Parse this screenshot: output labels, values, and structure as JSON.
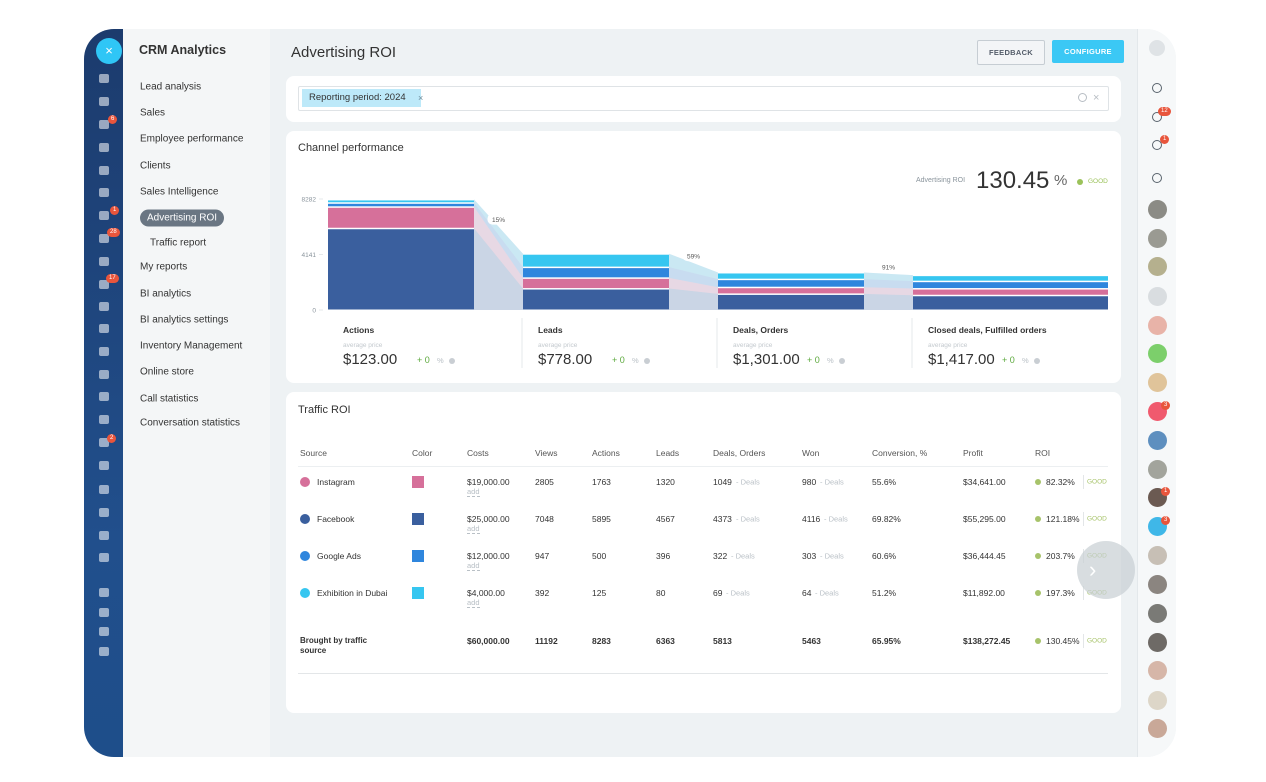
{
  "sidebar": {
    "title": "CRM Analytics",
    "items": [
      "Lead analysis",
      "Sales",
      "Employee performance",
      "Clients",
      "Sales Intelligence",
      "Advertising ROI",
      "Traffic report",
      "My reports",
      "BI analytics",
      "BI analytics settings",
      "Inventory Management",
      "Online store",
      "Call statistics",
      "Conversation statistics"
    ]
  },
  "left_rail": {
    "badges": [
      "6",
      "1",
      "28",
      "17",
      "2"
    ]
  },
  "right_rail": {
    "badges": [
      "12",
      "1",
      "3",
      "1",
      "3"
    ]
  },
  "header": {
    "title": "Advertising ROI",
    "buttons": [
      "FEEDBACK",
      "CONFIGURE"
    ]
  },
  "filter": {
    "tag": "Reporting period: 2024"
  },
  "chart_data": {
    "type": "funnel",
    "title": "Channel performance",
    "kpi": {
      "label": "Advertising ROI",
      "value": 130.45,
      "unit": "%",
      "status": "GOOD"
    },
    "categories": [
      "Actions",
      "Leads",
      "Deals, Orders",
      "Closed deals, Fulfilled orders"
    ],
    "series": [
      {
        "name": "Facebook",
        "color": "#3a5f9e",
        "values": [
          6100,
          1600,
          1200,
          1100
        ]
      },
      {
        "name": "Instagram",
        "color": "#d6709a",
        "values": [
          1600,
          800,
          500,
          500
        ]
      },
      {
        "name": "Google Ads",
        "color": "#2f86dd",
        "values": [
          300,
          800,
          600,
          550
        ]
      },
      {
        "name": "Exhibition in Dubai",
        "color": "#36c6f0",
        "values": [
          250,
          1000,
          500,
          450
        ]
      }
    ],
    "annotations": [
      "15%",
      "59%",
      "91%"
    ],
    "ylim": [
      0,
      8282
    ],
    "yticks": [
      0,
      4141,
      8282
    ],
    "stage_stats": [
      {
        "caption": "average price",
        "value": "$123.00",
        "change": "+ 0",
        "unit": "%"
      },
      {
        "caption": "average price",
        "value": "$778.00",
        "change": "+ 0",
        "unit": "%"
      },
      {
        "caption": "average price",
        "value": "$1,301.00",
        "change": "+ 0",
        "unit": "%"
      },
      {
        "caption": "average price",
        "value": "$1,417.00",
        "change": "+ 0",
        "unit": "%"
      }
    ]
  },
  "table": {
    "title": "Traffic ROI",
    "columns": [
      "Source",
      "Color",
      "Costs",
      "Views",
      "Actions",
      "Leads",
      "Deals, Orders",
      "Won",
      "Conversion, %",
      "Profit",
      "ROI"
    ],
    "rows": [
      {
        "source": "Instagram",
        "color": "#d6709a",
        "costs": "$19,000.00",
        "costs_link": "add",
        "views": 2805,
        "actions": 1763,
        "leads": 1320,
        "deals": 1049,
        "deals_unit": "- Deals",
        "won": 980,
        "won_unit": "- Deals",
        "conversion": "55.6%",
        "profit": "$34,641.00",
        "roi": "82.32%",
        "roi_status": "GOOD"
      },
      {
        "source": "Facebook",
        "color": "#3a5f9e",
        "costs": "$25,000.00",
        "costs_link": "add",
        "views": 7048,
        "actions": 5895,
        "leads": 4567,
        "deals": 4373,
        "deals_unit": "- Deals",
        "won": 4116,
        "won_unit": "- Deals",
        "conversion": "69.82%",
        "profit": "$55,295.00",
        "roi": "121.18%",
        "roi_status": "GOOD"
      },
      {
        "source": "Google Ads",
        "color": "#2f86dd",
        "costs": "$12,000.00",
        "costs_link": "add",
        "views": 947,
        "actions": 500,
        "leads": 396,
        "deals": 322,
        "deals_unit": "- Deals",
        "won": 303,
        "won_unit": "- Deals",
        "conversion": "60.6%",
        "profit": "$36,444.45",
        "roi": "203.7%",
        "roi_status": "GOOD"
      },
      {
        "source": "Exhibition in Dubai",
        "color": "#36c6f0",
        "costs": "$4,000.00",
        "costs_link": "add",
        "views": 392,
        "actions": 125,
        "leads": 80,
        "deals": 69,
        "deals_unit": "- Deals",
        "won": 64,
        "won_unit": "- Deals",
        "conversion": "51.2%",
        "profit": "$11,892.00",
        "roi": "197.3%",
        "roi_status": "GOOD"
      }
    ],
    "total": {
      "source": "Brought by traffic source",
      "costs": "$60,000.00",
      "views": 11192,
      "actions": 8283,
      "leads": 6363,
      "deals": 5813,
      "won": 5463,
      "conversion": "65.95%",
      "profit": "$138,272.45",
      "roi": "130.45%",
      "roi_status": "GOOD"
    }
  }
}
